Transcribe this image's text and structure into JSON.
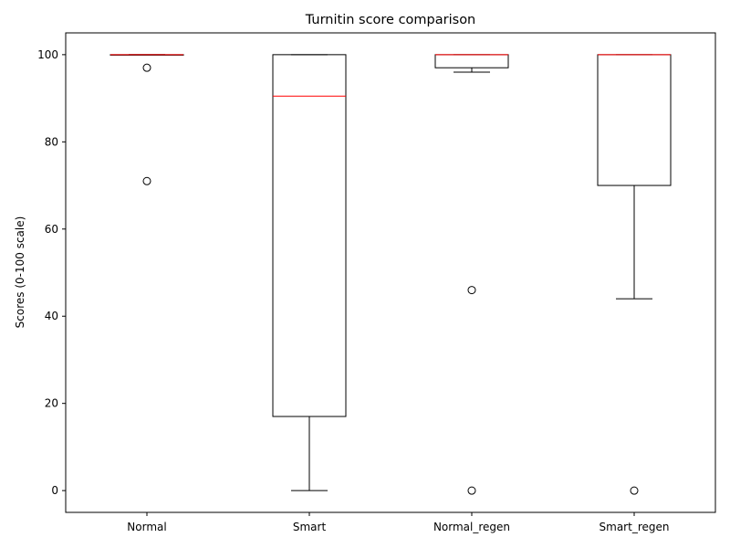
{
  "chart_data": {
    "type": "box",
    "title": "Turnitin score comparison",
    "xlabel": "",
    "ylabel": "Scores (0-100 scale)",
    "ylim": [
      -5,
      105
    ],
    "yticks": [
      0,
      20,
      40,
      60,
      80,
      100
    ],
    "grid": false,
    "categories": [
      "Normal",
      "Smart",
      "Normal_regen",
      "Smart_regen"
    ],
    "boxes": [
      {
        "category": "Normal",
        "whisker_low": 100,
        "q1": 100,
        "median": 100,
        "q3": 100,
        "whisker_high": 100,
        "outliers": [
          97,
          71
        ]
      },
      {
        "category": "Smart",
        "whisker_low": 0,
        "q1": 17,
        "median": 90.5,
        "q3": 100,
        "whisker_high": 100,
        "outliers": []
      },
      {
        "category": "Normal_regen",
        "whisker_low": 96,
        "q1": 97,
        "median": 100,
        "q3": 100,
        "whisker_high": 100,
        "outliers": [
          46,
          0
        ]
      },
      {
        "category": "Smart_regen",
        "whisker_low": 44,
        "q1": 70,
        "median": 100,
        "q3": 100,
        "whisker_high": 100,
        "outliers": [
          0
        ]
      }
    ],
    "colors": {
      "box": "#000000",
      "median": "#ff0000",
      "outlier": "#000000"
    }
  }
}
